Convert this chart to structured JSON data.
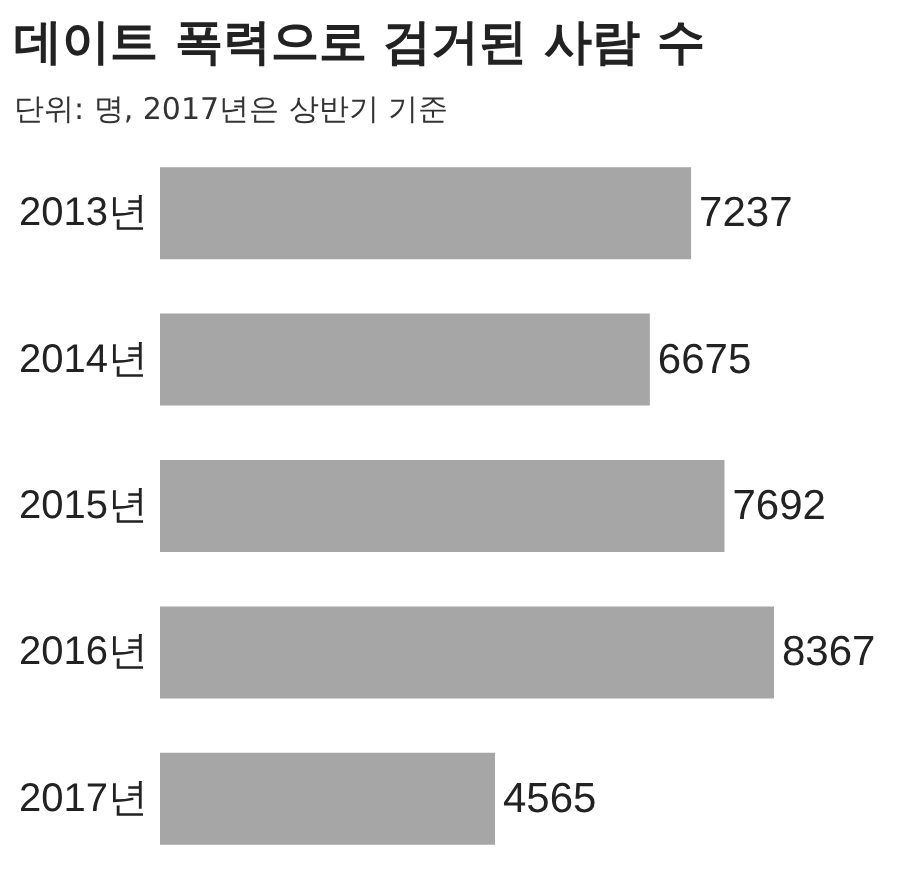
{
  "chart_data": {
    "type": "bar",
    "orientation": "horizontal",
    "title": "데이트 폭력으로 검거된 사람 수",
    "subtitle": "단위: 명, 2017년은 상반기 기준",
    "categories": [
      "2013년",
      "2014년",
      "2015년",
      "2016년",
      "2017년"
    ],
    "values": [
      7237,
      6675,
      7692,
      8367,
      4565
    ],
    "color": "#a6a6a6",
    "data_labels": true
  }
}
